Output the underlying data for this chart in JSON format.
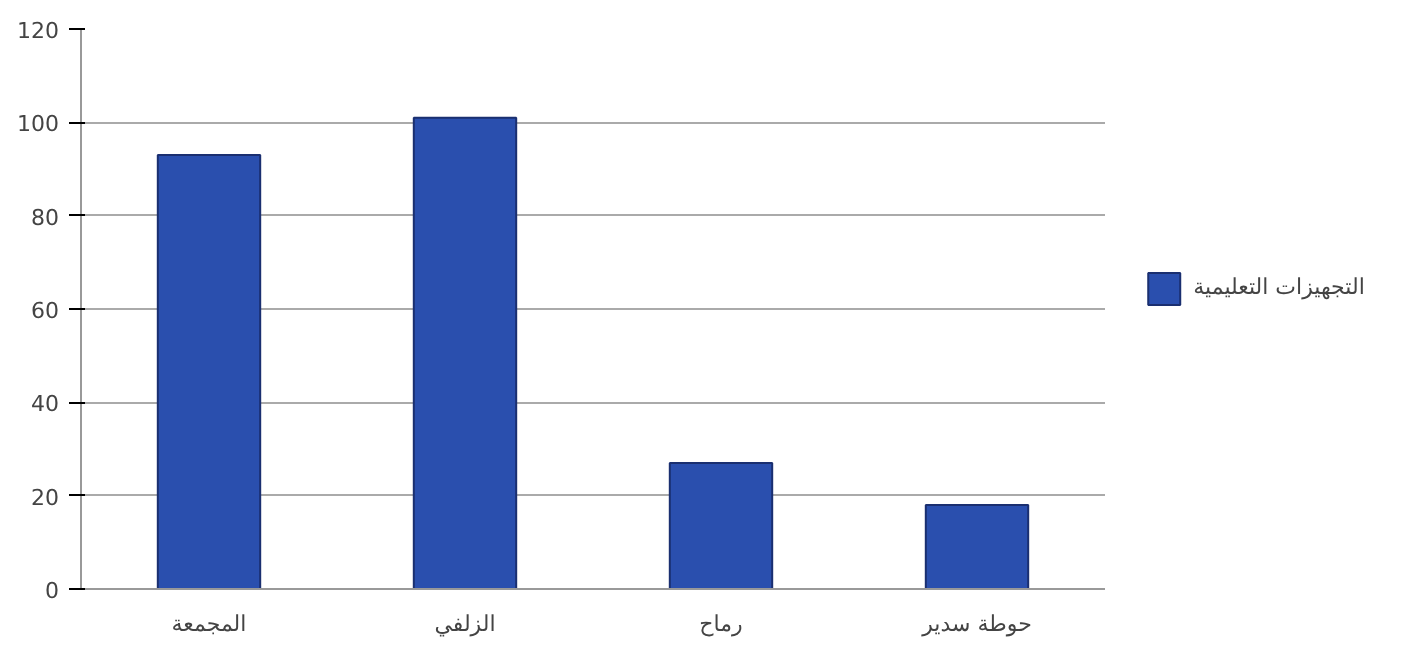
{
  "chart_data": {
    "type": "bar",
    "categories": [
      "المجمعة",
      "الزلفي",
      "رماح",
      "حوطة سدير"
    ],
    "series": [
      {
        "name": "التجهيزات التعليمية",
        "color": "#2a4fae",
        "values": [
          93,
          101,
          27,
          18
        ]
      }
    ],
    "ylim": [
      0,
      120
    ],
    "yticks": [
      0,
      20,
      40,
      60,
      80,
      100,
      120
    ],
    "grid": "y",
    "legend": "right"
  }
}
